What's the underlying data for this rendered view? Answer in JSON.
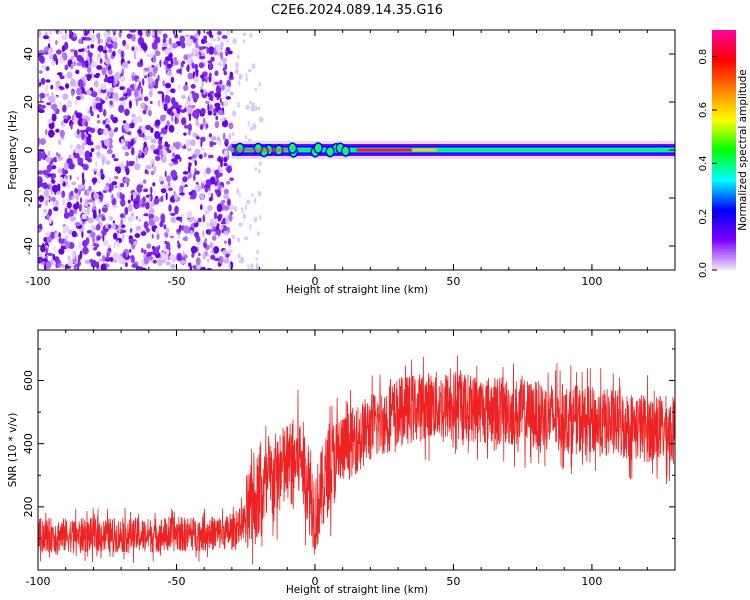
{
  "figure_title": "C2E6.2024.089.14.35.G16",
  "chart_data": [
    {
      "type": "heatmap",
      "xlabel": "Height of straight line (km)",
      "ylabel": "Frequency (Hz)",
      "xlim": [
        -100,
        130
      ],
      "ylim": [
        -50,
        50
      ],
      "x_ticks": [
        -100,
        -50,
        0,
        50,
        100
      ],
      "x_tick_labels": [
        "-100",
        "-50",
        "0",
        "50",
        "100"
      ],
      "y_ticks": [
        -40,
        -20,
        0,
        20,
        40
      ],
      "y_tick_labels": [
        "-40",
        "-20",
        "0",
        "20",
        "40"
      ],
      "noise_region_x": [
        -100,
        -30
      ],
      "signal_band": {
        "x_start": -30,
        "x_end": 130,
        "frequency_hz": 0
      },
      "strong_signal_x": [
        15,
        35
      ],
      "colorbar": {
        "label": "Normalized spectral amplitude",
        "range": [
          0,
          0.9
        ],
        "ticks": [
          0.0,
          0.2,
          0.4,
          0.6,
          0.8
        ],
        "tick_labels": [
          "0.0",
          "0.2",
          "0.4",
          "0.6",
          "0.8"
        ],
        "colormap": [
          "#f3e6ff",
          "#7a00ff",
          "#0000ff",
          "#00ffff",
          "#00ff00",
          "#ffff00",
          "#ff8000",
          "#ff0000",
          "#ff00a0"
        ]
      },
      "grid": false
    },
    {
      "type": "line",
      "xlabel": "Height of straight line (km)",
      "ylabel": "SNR (10 * v/v)",
      "xlim": [
        -100,
        130
      ],
      "ylim": [
        0,
        760
      ],
      "x_ticks": [
        -100,
        -50,
        0,
        50,
        100
      ],
      "x_tick_labels": [
        "-100",
        "-50",
        "0",
        "50",
        "100"
      ],
      "y_ticks": [
        200,
        400,
        600
      ],
      "y_tick_labels": [
        "200",
        "400",
        "600"
      ],
      "color": "#ee2222",
      "series": [
        {
          "x": [
            -100,
            -80,
            -60,
            -40,
            -30,
            -25,
            -20,
            -15,
            -10,
            -5,
            0,
            5,
            10,
            20,
            30,
            40,
            50,
            60,
            70,
            80,
            90,
            100,
            110,
            120,
            130
          ],
          "values": [
            110,
            110,
            110,
            115,
            120,
            160,
            240,
            290,
            330,
            360,
            180,
            320,
            380,
            450,
            500,
            520,
            520,
            510,
            500,
            490,
            480,
            470,
            460,
            450,
            440
          ]
        }
      ],
      "grid": false
    }
  ]
}
